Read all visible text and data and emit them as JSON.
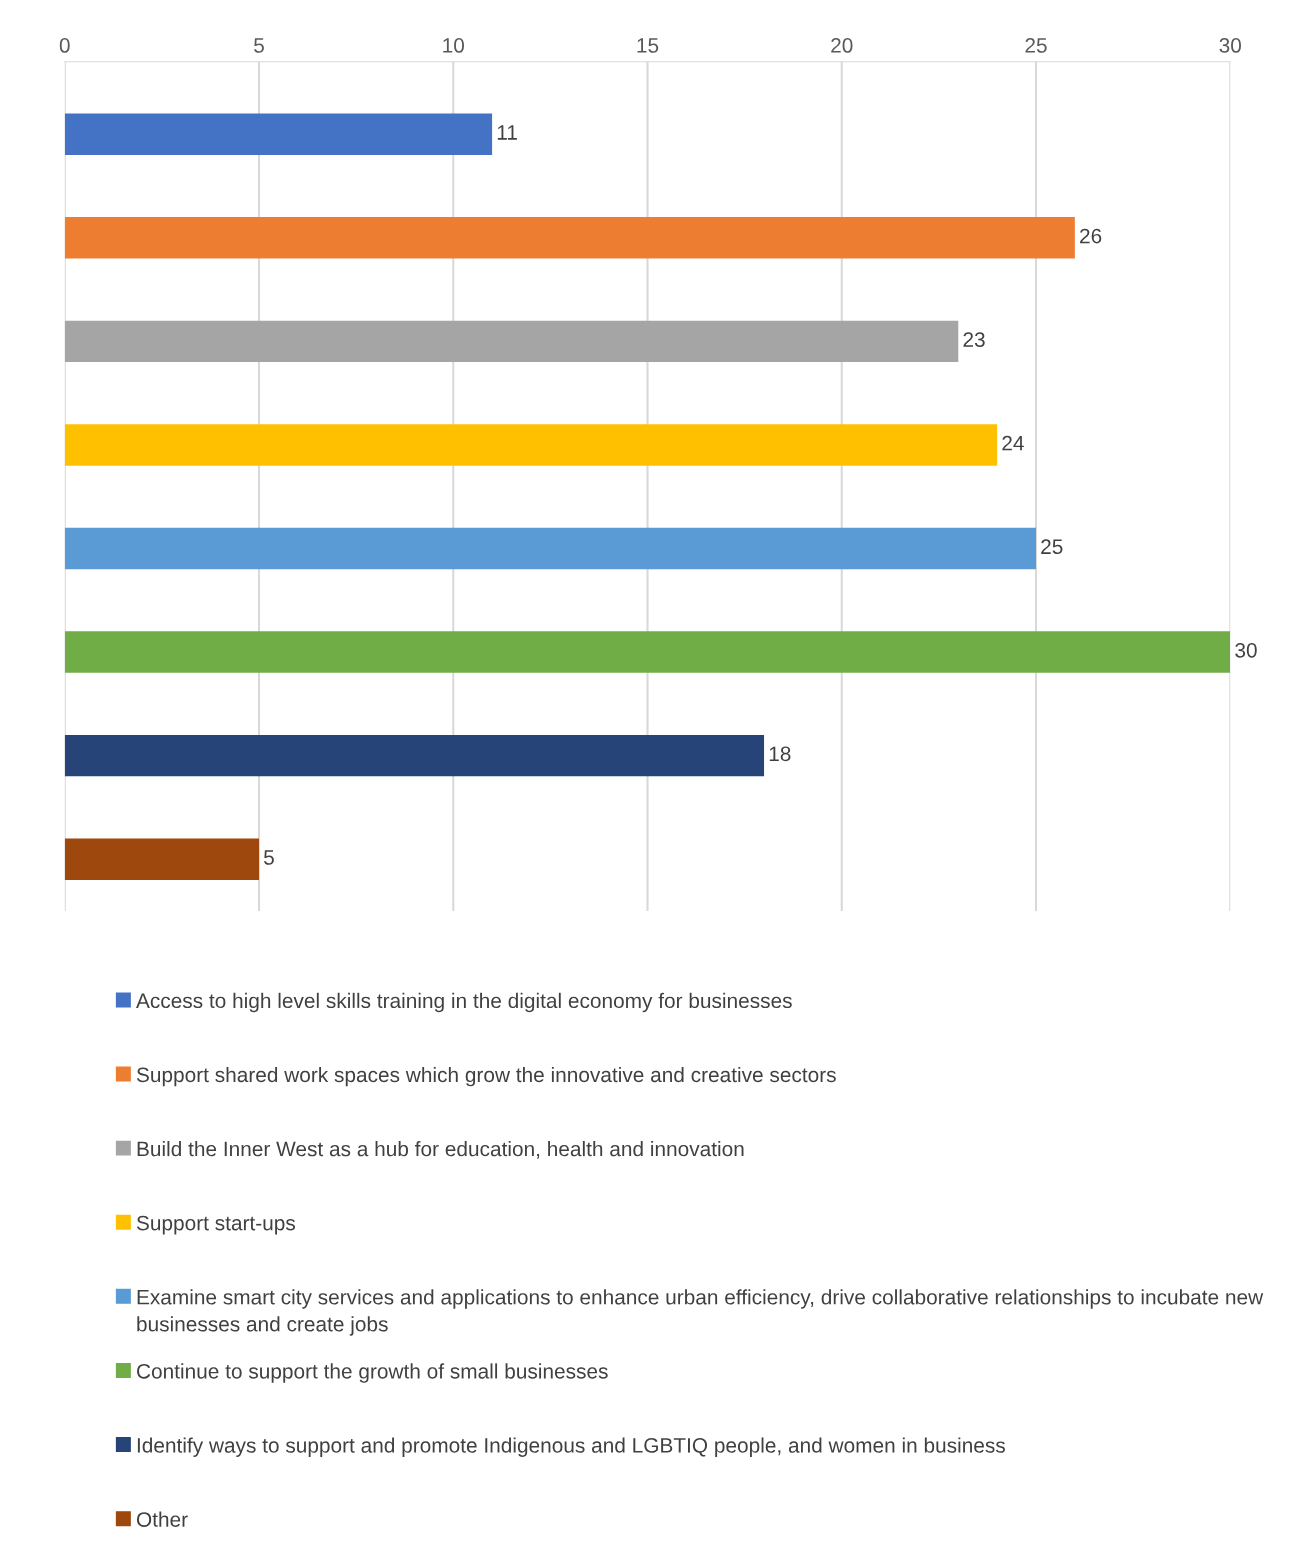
{
  "chart_data": {
    "type": "bar",
    "orientation": "horizontal",
    "categories": [
      null,
      null,
      null,
      null,
      null,
      null,
      null,
      null
    ],
    "series": [
      {
        "name": "Access to high level skills training in the digital economy for businesses",
        "color": "#4472c4",
        "values": [
          11,
          null,
          null,
          null,
          null,
          null,
          null,
          null
        ]
      },
      {
        "name": "Support shared work spaces which grow the innovative and creative sectors",
        "color": "#ed7d31",
        "values": [
          null,
          26,
          null,
          null,
          null,
          null,
          null,
          null
        ]
      },
      {
        "name": "Build the Inner West as a hub for education, health and innovation",
        "color": "#a5a5a5",
        "values": [
          null,
          null,
          23,
          null,
          null,
          null,
          null,
          null
        ]
      },
      {
        "name": "Support start-ups",
        "color": "#ffc000",
        "values": [
          null,
          null,
          null,
          24,
          null,
          null,
          null,
          null
        ]
      },
      {
        "name": "Examine smart city services and applications to enhance urban efficiency, drive collaborative relationships to incubate new businesses and create jobs",
        "color": "#5b9bd5",
        "values": [
          null,
          null,
          null,
          null,
          25,
          null,
          null,
          null
        ]
      },
      {
        "name": "Continue to support the growth of small businesses",
        "color": "#70ad47",
        "values": [
          null,
          null,
          null,
          null,
          null,
          30,
          null,
          null
        ]
      },
      {
        "name": "Identify ways to support and promote Indigenous and LGBTIQ people, and women in business",
        "color": "#264478",
        "values": [
          null,
          null,
          null,
          null,
          null,
          null,
          18,
          null
        ]
      },
      {
        "name": "Other",
        "color": "#9e480e",
        "values": [
          null,
          null,
          null,
          null,
          null,
          null,
          null,
          5
        ]
      }
    ],
    "xlim": [
      0,
      30
    ],
    "xticks": [
      0,
      5,
      10,
      15,
      20,
      25,
      30
    ],
    "grid": "x",
    "legend": "bottom",
    "data_labels": true,
    "tick_labels": "x"
  }
}
